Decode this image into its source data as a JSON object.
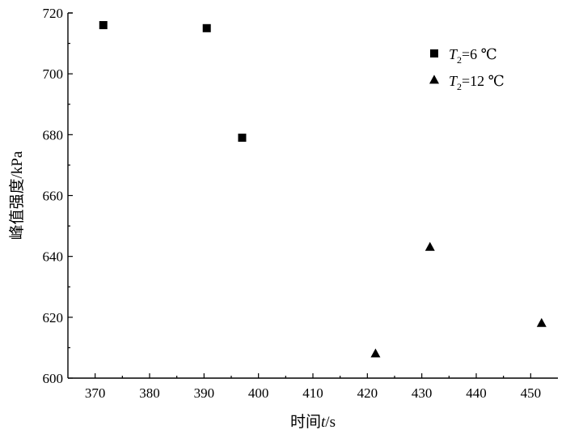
{
  "chart_data": {
    "type": "scatter",
    "title": "",
    "xlabel": "时间t/s",
    "xlabel_parts": {
      "prefix": "时间",
      "var": "t",
      "suffix": "/s"
    },
    "ylabel": "峰值强度/kPa",
    "xlim": [
      365,
      455
    ],
    "ylim": [
      600,
      720
    ],
    "xticks": [
      370,
      380,
      390,
      400,
      410,
      420,
      430,
      440,
      450
    ],
    "yticks": [
      600,
      620,
      640,
      660,
      680,
      700,
      720
    ],
    "grid": false,
    "legend_position": "top-right",
    "series": [
      {
        "name": "T2=6 ℃",
        "label_parts": {
          "var": "T",
          "sub": "2",
          "rest": "=6 ℃"
        },
        "marker": "square",
        "color": "#000000",
        "points": [
          {
            "x": 371.5,
            "y": 716
          },
          {
            "x": 390.5,
            "y": 715
          },
          {
            "x": 397,
            "y": 679
          }
        ]
      },
      {
        "name": "T2=12 ℃",
        "label_parts": {
          "var": "T",
          "sub": "2",
          "rest": "=12 ℃"
        },
        "marker": "triangle",
        "color": "#000000",
        "points": [
          {
            "x": 421.5,
            "y": 608
          },
          {
            "x": 431.5,
            "y": 643
          },
          {
            "x": 452,
            "y": 618
          }
        ]
      }
    ]
  }
}
